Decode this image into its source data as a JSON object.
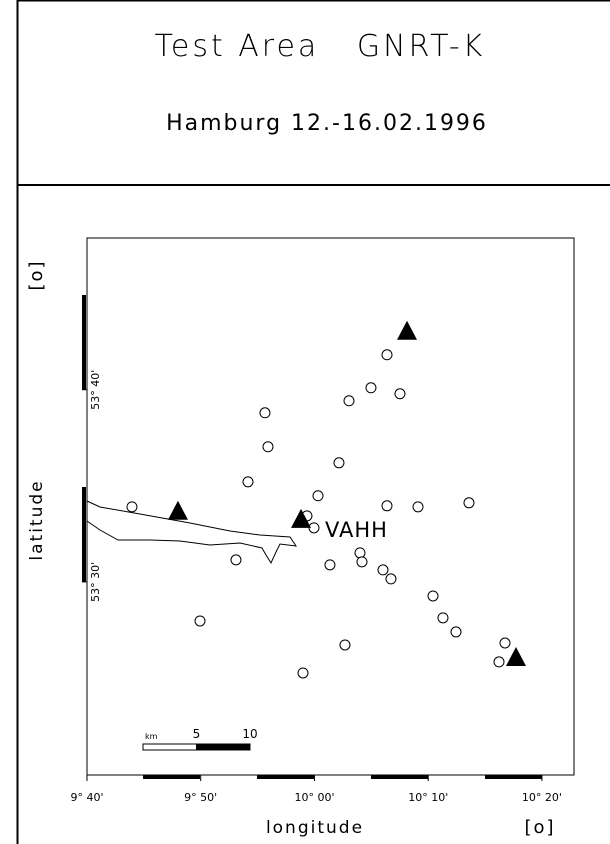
{
  "chart_data": {
    "type": "scatter",
    "title": "Test Area   GNRT-K",
    "subtitle": "Hamburg 12.-16.02.1996",
    "x_label": "longitude",
    "y_label": "latitude",
    "x_unit": "[o]",
    "y_unit": "[o]",
    "xlim": [
      9.6667,
      10.3803
    ],
    "ylim": [
      53.3325,
      53.7983
    ],
    "xticks": [
      {
        "value": 9.6667,
        "label": "9° 40'"
      },
      {
        "value": 9.8333,
        "label": "9° 50'"
      },
      {
        "value": 10,
        "label": "10° 00'"
      },
      {
        "value": 10.1667,
        "label": "10° 10'"
      },
      {
        "value": 10.3333,
        "label": "10° 20'"
      }
    ],
    "yticks": [
      {
        "value": 53.5,
        "label": "53° 30'"
      },
      {
        "value": 53.6667,
        "label": "53° 40'"
      }
    ],
    "station_label": "VAHH",
    "scale_bar": {
      "unit": "km",
      "ticks": [
        5,
        10
      ]
    },
    "series": [
      {
        "marker": "circle",
        "color": "#000000",
        "x": [
          9.7326,
          9.8323,
          9.885,
          9.9026,
          9.9275,
          9.9319,
          9.9832,
          9.989,
          9.9993,
          10.0052,
          10.0227,
          10.0359,
          10.0447,
          10.0506,
          10.0667,
          10.0696,
          10.0828,
          10.1004,
          10.1063,
          10.1063,
          10.1121,
          10.1253,
          10.1517,
          10.1737,
          10.1883,
          10.2074,
          10.2264,
          10.2704,
          10.2792
        ],
        "values": [
          53.5651,
          53.4661,
          53.5191,
          53.5868,
          53.6467,
          53.6172,
          53.421,
          53.5573,
          53.5469,
          53.5747,
          53.5148,
          53.6033,
          53.4453,
          53.6571,
          53.5252,
          53.5174,
          53.6684,
          53.5104,
          53.697,
          53.566,
          53.5026,
          53.6632,
          53.5651,
          53.4878,
          53.4688,
          53.4566,
          53.5686,
          53.4306,
          53.447
        ]
      },
      {
        "marker": "triangle",
        "color": "#000000",
        "x": [
          9.8,
          9.9803,
          10.1356,
          10.2953
        ],
        "values": [
          53.5608,
          53.5538,
          53.717,
          53.434
        ]
      }
    ]
  }
}
